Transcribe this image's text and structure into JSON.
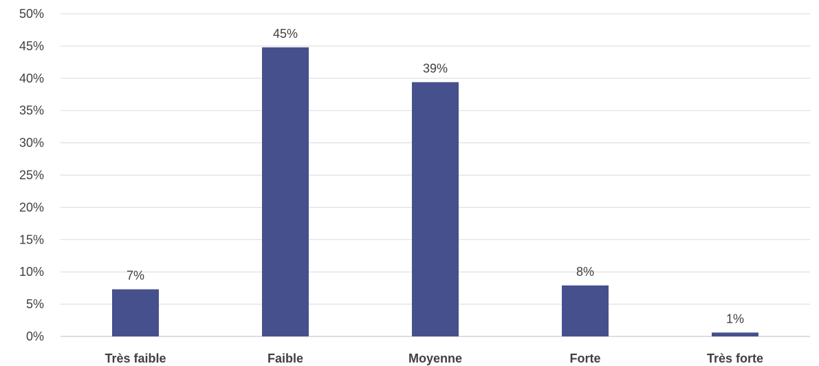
{
  "chart_data": {
    "type": "bar",
    "title": "",
    "xlabel": "",
    "ylabel": "",
    "categories": [
      "Très faible",
      "Faible",
      "Moyenne",
      "Forte",
      "Très forte"
    ],
    "values": [
      7.3,
      44.8,
      39.4,
      7.9,
      0.6
    ],
    "data_labels": [
      "7%",
      "45%",
      "39%",
      "8%",
      "1%"
    ],
    "ylim": [
      0,
      50
    ],
    "yticks": [
      0,
      5,
      10,
      15,
      20,
      25,
      30,
      35,
      40,
      45,
      50
    ],
    "ytick_labels": [
      "0%",
      "5%",
      "10%",
      "15%",
      "20%",
      "25%",
      "30%",
      "35%",
      "40%",
      "45%",
      "50%"
    ],
    "grid": true,
    "legend": "none",
    "colors": {
      "bar": "#45508c",
      "grid": "#d9d9d9",
      "text": "#404040"
    }
  }
}
